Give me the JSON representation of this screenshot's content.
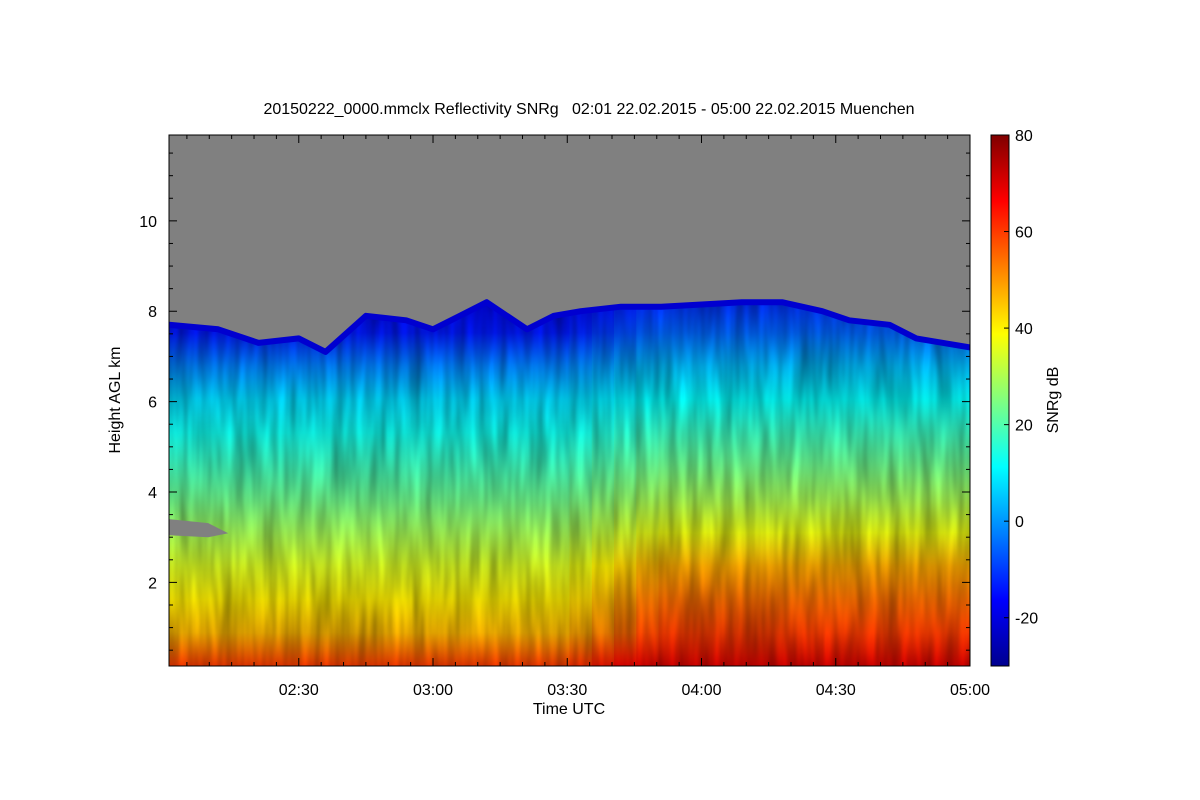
{
  "chart_data": {
    "type": "heatmap",
    "title": "20150222_0000.mmclx Reflectivity SNRg   02:01 22.02.2015 - 05:00 22.02.2015 Muenchen",
    "xlabel": "Time UTC",
    "ylabel": "Height AGL km",
    "colorbar_label": "SNRg dB",
    "xlim": [
      "02:01",
      "05:00"
    ],
    "ylim": [
      0.15,
      11.9
    ],
    "zlim": [
      -30,
      80
    ],
    "x_ticks": [
      "02:30",
      "03:00",
      "03:30",
      "04:00",
      "04:30",
      "05:00"
    ],
    "y_ticks": [
      "2",
      "4",
      "6",
      "8",
      "10"
    ],
    "colorbar_ticks": [
      "80",
      "60",
      "40",
      "20",
      "0",
      "-20"
    ],
    "colormap": [
      "#00008f",
      "#0000ff",
      "#0080ff",
      "#00ffff",
      "#80ff80",
      "#ffff00",
      "#ff8000",
      "#ff0000",
      "#800000"
    ],
    "missing_color": "#808080",
    "echo_top_km": [
      [
        2.0167,
        7.7
      ],
      [
        2.2,
        7.6
      ],
      [
        2.35,
        7.3
      ],
      [
        2.5,
        7.4
      ],
      [
        2.6,
        7.1
      ],
      [
        2.75,
        7.9
      ],
      [
        2.9,
        7.8
      ],
      [
        3.0,
        7.6
      ],
      [
        3.1,
        7.9
      ],
      [
        3.2,
        8.2
      ],
      [
        3.35,
        7.6
      ],
      [
        3.45,
        7.9
      ],
      [
        3.55,
        8.0
      ],
      [
        3.7,
        8.1
      ],
      [
        3.85,
        8.1
      ],
      [
        4.0,
        8.15
      ],
      [
        4.15,
        8.2
      ],
      [
        4.3,
        8.2
      ],
      [
        4.45,
        8.0
      ],
      [
        4.55,
        7.8
      ],
      [
        4.7,
        7.7
      ],
      [
        4.8,
        7.4
      ],
      [
        4.9,
        7.3
      ],
      [
        5.0,
        7.2
      ]
    ],
    "snr_profile_db": [
      [
        0.2,
        60
      ],
      [
        0.6,
        50
      ],
      [
        1.0,
        45
      ],
      [
        2.0,
        38
      ],
      [
        3.0,
        30
      ],
      [
        4.0,
        22
      ],
      [
        5.0,
        15
      ],
      [
        6.0,
        8
      ],
      [
        7.0,
        -5
      ],
      [
        7.8,
        -18
      ]
    ],
    "snr_profile_db_after_0340": [
      [
        0.2,
        70
      ],
      [
        1.0,
        58
      ],
      [
        2.0,
        52
      ],
      [
        2.6,
        45
      ],
      [
        3.0,
        38
      ],
      [
        4.0,
        28
      ],
      [
        5.0,
        20
      ],
      [
        6.0,
        12
      ],
      [
        7.0,
        2
      ],
      [
        8.0,
        -12
      ]
    ],
    "missing_wedge": {
      "time_range": [
        "02:01",
        "02:12"
      ],
      "height_range_km": [
        3.0,
        3.4
      ]
    },
    "grid": false
  }
}
